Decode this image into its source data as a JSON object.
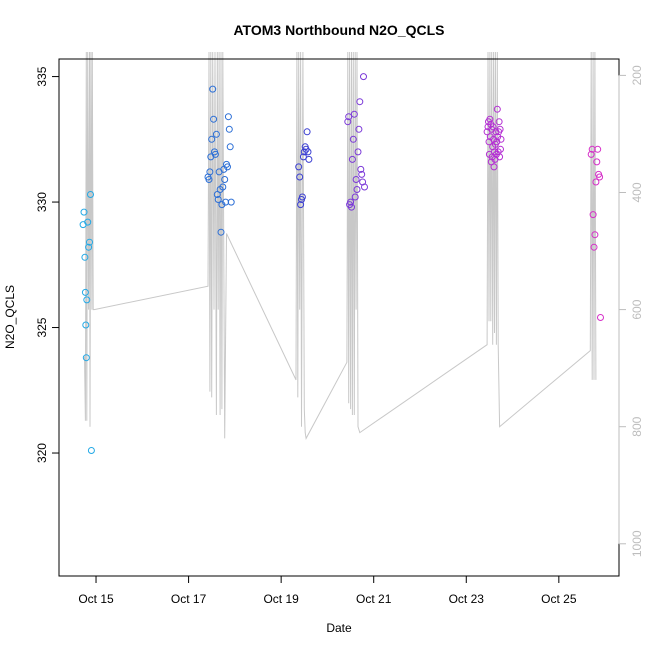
{
  "chart_data": {
    "type": "scatter",
    "title": "ATOM3 Northbound N2O_QCLS",
    "xlabel": "Date",
    "ylabel": "N2O_QCLS",
    "x_unit": "days of October",
    "xlim": [
      14.2,
      26.3
    ],
    "ylim": [
      315.1,
      335.7
    ],
    "y2lim": [
      1055,
      172
    ],
    "x_ticks": [
      {
        "value": 15,
        "label": "Oct 15"
      },
      {
        "value": 17,
        "label": "Oct 17"
      },
      {
        "value": 19,
        "label": "Oct 19"
      },
      {
        "value": 21,
        "label": "Oct 21"
      },
      {
        "value": 23,
        "label": "Oct 23"
      },
      {
        "value": 25,
        "label": "Oct 25"
      }
    ],
    "y_ticks": [
      320,
      325,
      330,
      335
    ],
    "y2_ticks": [
      200,
      400,
      600,
      800,
      1000
    ],
    "grid": false,
    "legend": "none",
    "colors": {
      "secondary_line": "#c8c8c8",
      "right_axis": "#bdbdbd",
      "axis": "#000000"
    },
    "secondary_series": {
      "description_axis": "right",
      "x": [
        14.75,
        14.77,
        14.79,
        14.8,
        14.82,
        14.84,
        14.86,
        14.87,
        14.89,
        14.91,
        14.92,
        14.94,
        14.96,
        17.42,
        17.44,
        17.46,
        17.48,
        17.5,
        17.52,
        17.55,
        17.57,
        17.6,
        17.62,
        17.64,
        17.66,
        17.68,
        17.7,
        17.72,
        17.74,
        17.78,
        17.82,
        19.32,
        19.34,
        19.36,
        19.38,
        19.4,
        19.42,
        19.44,
        19.47,
        19.5,
        19.52,
        19.54,
        20.42,
        20.44,
        20.46,
        20.48,
        20.5,
        20.52,
        20.54,
        20.56,
        20.58,
        20.6,
        20.62,
        20.64,
        20.66,
        20.7,
        23.45,
        23.47,
        23.49,
        23.51,
        23.53,
        23.55,
        23.57,
        23.59,
        23.61,
        23.63,
        23.65,
        23.67,
        23.69,
        23.72,
        25.68,
        25.7,
        25.72,
        25.74,
        25.76,
        25.78,
        25.8
      ],
      "y": [
        680,
        790,
        160,
        790,
        160,
        600,
        160,
        800,
        160,
        600,
        160,
        600,
        600,
        560,
        160,
        740,
        160,
        750,
        160,
        600,
        160,
        780,
        160,
        600,
        160,
        780,
        160,
        770,
        160,
        820,
        470,
        720,
        160,
        750,
        160,
        600,
        160,
        800,
        160,
        770,
        810,
        820,
        690,
        160,
        760,
        160,
        770,
        160,
        780,
        160,
        780,
        160,
        600,
        160,
        800,
        810,
        660,
        160,
        620,
        160,
        620,
        160,
        660,
        160,
        640,
        160,
        660,
        160,
        660,
        800,
        670,
        160,
        720,
        160,
        720,
        160,
        720
      ]
    },
    "series": [
      {
        "color": "#23a9e6",
        "x": [
          14.72,
          14.74,
          14.76,
          14.77,
          14.78,
          14.79,
          14.8,
          14.82,
          14.84,
          14.86,
          14.88,
          14.9
        ],
        "y": [
          329.1,
          329.6,
          327.8,
          326.4,
          325.1,
          323.8,
          326.1,
          329.2,
          328.2,
          328.4,
          330.3,
          320.1
        ]
      },
      {
        "color": "#2c6fd6",
        "x": [
          17.42,
          17.44,
          17.46,
          17.48,
          17.5,
          17.52,
          17.54,
          17.56,
          17.58,
          17.6,
          17.62,
          17.64,
          17.66,
          17.68,
          17.7,
          17.72,
          17.74,
          17.76,
          17.78,
          17.8,
          17.82,
          17.84,
          17.86,
          17.88,
          17.9,
          17.92
        ],
        "y": [
          331.0,
          330.9,
          331.2,
          331.8,
          332.5,
          334.5,
          333.3,
          332.0,
          331.9,
          332.7,
          330.3,
          330.1,
          331.2,
          330.5,
          328.8,
          329.9,
          330.6,
          331.3,
          330.9,
          330.0,
          331.5,
          331.4,
          333.4,
          332.9,
          332.2,
          330.0
        ]
      },
      {
        "color": "#3b3fd2",
        "x": [
          19.38,
          19.4,
          19.42,
          19.44,
          19.46,
          19.48,
          19.5,
          19.52,
          19.54,
          19.56,
          19.58,
          19.6
        ],
        "y": [
          331.4,
          331.0,
          329.9,
          330.1,
          330.2,
          331.8,
          332.0,
          332.2,
          332.1,
          332.8,
          332.0,
          331.7
        ]
      },
      {
        "color": "#7b39d8",
        "x": [
          20.44,
          20.46,
          20.48,
          20.5,
          20.52,
          20.54,
          20.56,
          20.58,
          20.6,
          20.62,
          20.64,
          20.66,
          20.68,
          20.7,
          20.72,
          20.74,
          20.76,
          20.78,
          20.8
        ],
        "y": [
          333.2,
          333.4,
          329.9,
          330.0,
          329.8,
          331.7,
          332.5,
          333.5,
          330.2,
          330.9,
          330.5,
          332.0,
          332.9,
          334.0,
          331.3,
          331.1,
          330.8,
          335.0,
          330.6
        ]
      },
      {
        "color": "#b42fd3",
        "x": [
          23.45,
          23.47,
          23.48,
          23.49,
          23.5,
          23.51,
          23.52,
          23.53,
          23.54,
          23.55,
          23.56,
          23.57,
          23.58,
          23.59,
          23.6,
          23.61,
          23.62,
          23.63,
          23.64,
          23.65,
          23.66,
          23.67,
          23.68,
          23.69,
          23.7,
          23.71,
          23.72,
          23.73,
          23.74,
          23.75
        ],
        "y": [
          332.8,
          333.0,
          333.2,
          332.4,
          331.9,
          333.3,
          332.6,
          333.1,
          331.6,
          332.9,
          331.8,
          332.2,
          333.0,
          332.5,
          331.4,
          332.0,
          331.7,
          332.3,
          332.8,
          331.9,
          332.4,
          333.7,
          332.6,
          332.0,
          332.8,
          333.2,
          331.8,
          332.9,
          332.1,
          332.5
        ]
      },
      {
        "color": "#d62fc8",
        "x": [
          25.7,
          25.72,
          25.74,
          25.76,
          25.78,
          25.8,
          25.82,
          25.84,
          25.86,
          25.88,
          25.9
        ],
        "y": [
          331.9,
          332.1,
          329.5,
          328.2,
          328.7,
          330.8,
          331.6,
          332.1,
          331.1,
          331.0,
          325.4
        ]
      }
    ]
  }
}
